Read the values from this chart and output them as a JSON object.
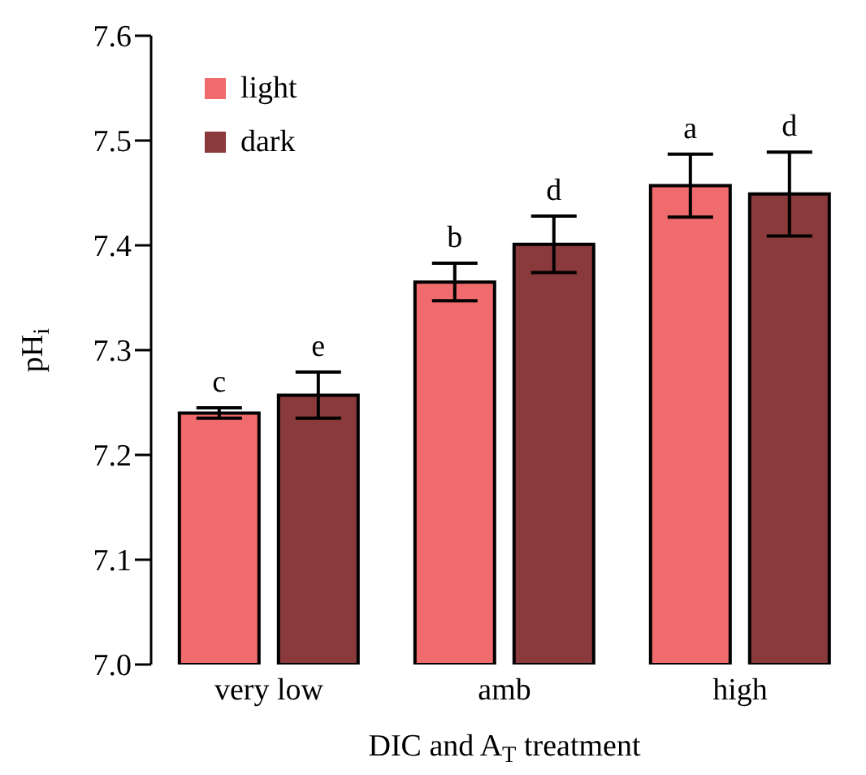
{
  "chart_data": {
    "type": "bar",
    "xlabel": "DIC and A$_{T}$ treatment",
    "ylabel": "pH$_{i}$",
    "categories": [
      "very low",
      "amb",
      "high"
    ],
    "series": [
      {
        "name": "light",
        "color": "#f06b6d",
        "values": [
          7.24,
          7.365,
          7.457
        ],
        "errors": [
          0.005,
          0.018,
          0.03
        ],
        "value_labels": [
          "c",
          "b",
          "a"
        ]
      },
      {
        "name": "dark",
        "color": "#8b3a3b",
        "values": [
          7.257,
          7.401,
          7.449
        ],
        "errors": [
          0.022,
          0.027,
          0.04
        ],
        "value_labels": [
          "e",
          "d",
          "d"
        ]
      }
    ],
    "ylim": [
      7.0,
      7.6
    ],
    "yticks": [
      {
        "value": 7.0,
        "label": "7.0"
      },
      {
        "value": 7.1,
        "label": "7.1"
      },
      {
        "value": 7.2,
        "label": "7.2"
      },
      {
        "value": 7.3,
        "label": "7.3"
      },
      {
        "value": 7.4,
        "label": "7.4"
      },
      {
        "value": 7.5,
        "label": "7.5"
      },
      {
        "value": 7.6,
        "label": "7.6"
      }
    ],
    "grid": false,
    "legend": "top left"
  }
}
